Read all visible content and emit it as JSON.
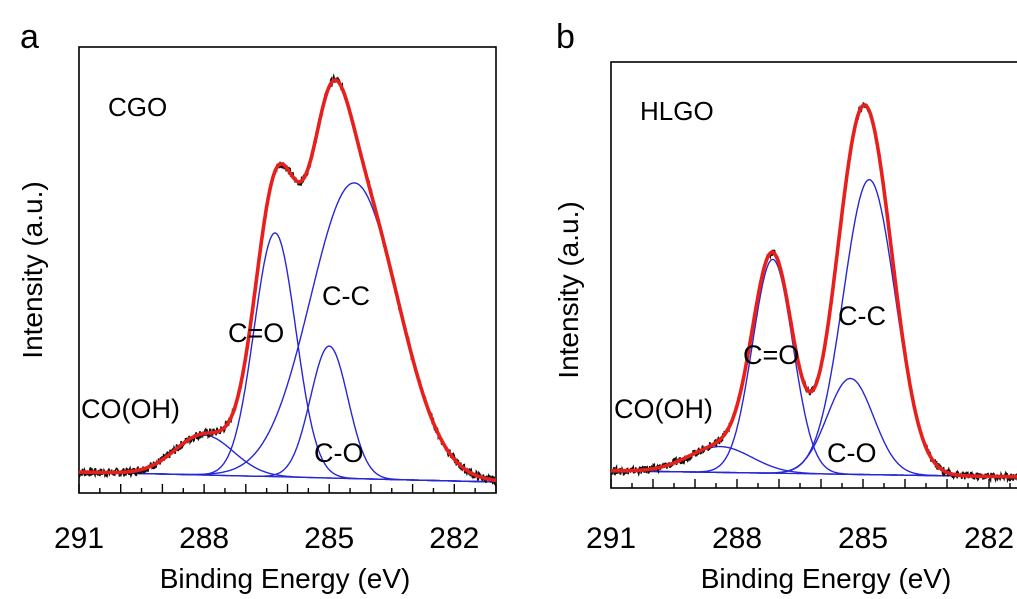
{
  "colors": {
    "fit": "#e8201c",
    "component": "#2727d6",
    "raw": "#111111",
    "baseline": "#2727d6"
  },
  "chart_data": [
    {
      "type": "line",
      "panel": "a",
      "sample": "CGO",
      "xlabel": "Binding Energy (eV)",
      "ylabel": "Intensity (a.u.)",
      "xlim": [
        291,
        281
      ],
      "ticks": [
        "291",
        "288",
        "285",
        "282"
      ],
      "components": [
        {
          "label": "C-C",
          "center": 284.4,
          "height": 0.74,
          "width": 1.05
        },
        {
          "label": "C=O",
          "center": 286.3,
          "height": 0.61,
          "width": 0.5
        },
        {
          "label": "C-O",
          "center": 285.0,
          "height": 0.33,
          "width": 0.45
        },
        {
          "label": "CO(OH)",
          "center": 288.0,
          "height": 0.1,
          "width": 0.7
        }
      ]
    },
    {
      "type": "line",
      "panel": "b",
      "sample": "HLGO",
      "xlabel": "Binding Energy (eV)",
      "ylabel": "Intensity (a.u.)",
      "xlim": [
        291,
        281
      ],
      "ticks": [
        "291",
        "288",
        "285",
        "282"
      ],
      "components": [
        {
          "label": "C-C",
          "center": 284.85,
          "height": 0.8,
          "width": 0.62
        },
        {
          "label": "C=O",
          "center": 287.15,
          "height": 0.58,
          "width": 0.48
        },
        {
          "label": "C-O",
          "center": 285.3,
          "height": 0.26,
          "width": 0.55
        },
        {
          "label": "CO(OH)",
          "center": 288.4,
          "height": 0.07,
          "width": 0.75
        }
      ]
    }
  ]
}
